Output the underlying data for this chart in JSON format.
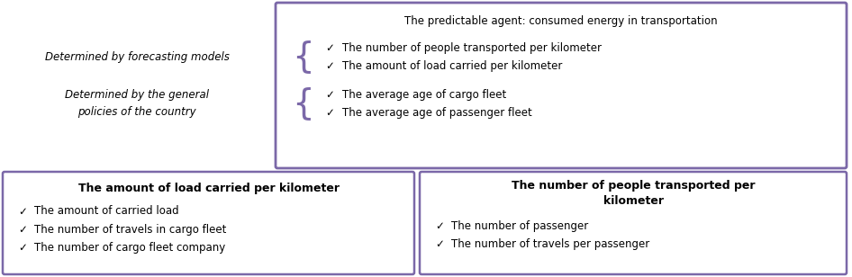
{
  "box_color": "#7B68A8",
  "text_color": "#000000",
  "bg_color": "#ffffff",
  "top_box": {
    "title": "The predictable agent: consumed energy in transportation",
    "items": [
      "The number of people transported per kilometer",
      "The amount of load carried per kilometer",
      "The average age of cargo fleet",
      "The average age of passenger fleet"
    ]
  },
  "left_labels": [
    "Determined by forecasting models",
    "Determined by the general\npolicies of the country"
  ],
  "bottom_left_box": {
    "title": "The amount of load carried per kilometer",
    "items": [
      "The amount of carried load",
      "The number of travels in cargo fleet",
      "The number of cargo fleet company"
    ]
  },
  "bottom_right_box": {
    "title": "The number of people transported per\nkilometer",
    "items": [
      "The number of passenger",
      "The number of travels per passenger"
    ]
  }
}
